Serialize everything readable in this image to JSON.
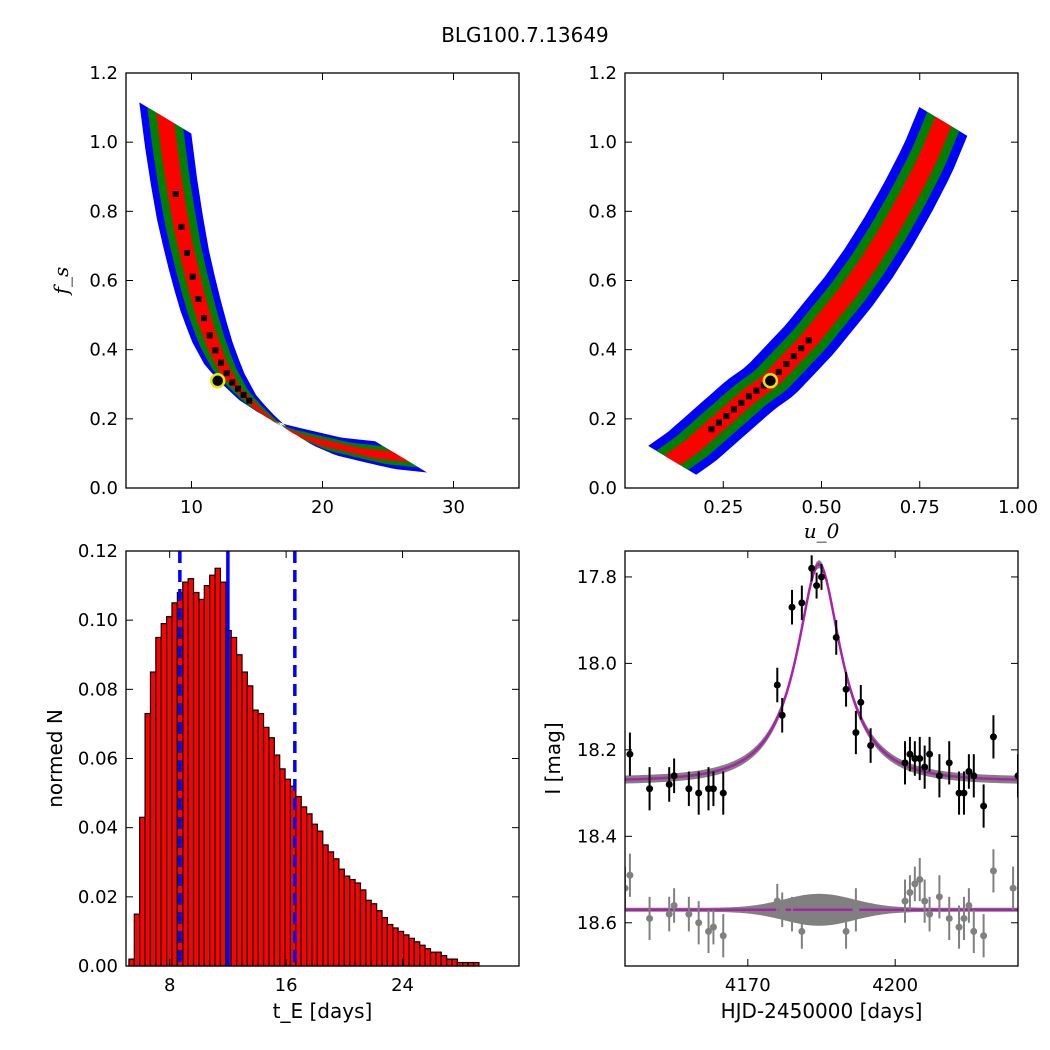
{
  "figure_title": "BLG100.7.13649",
  "chart_data": [
    {
      "type": "heatmap",
      "panel": "top-left",
      "xlabel": "",
      "ylabel": "f_s",
      "xlim": [
        5,
        35
      ],
      "ylim": [
        0,
        1.2
      ],
      "xticks": [
        "10",
        "20",
        "30"
      ],
      "yticks": [
        "0.0",
        "0.2",
        "0.4",
        "0.6",
        "0.8",
        "1.0",
        "1.2"
      ],
      "confidence_colors": {
        "inner": "#ff0000",
        "middle": "#008000",
        "outer": "#0000ff"
      },
      "ridge": {
        "x": [
          8.0,
          8.4,
          8.8,
          9.3,
          9.9,
          10.5,
          11.2,
          12.0,
          13.0,
          14.2,
          15.6,
          17.2,
          19.0,
          21.2,
          23.5,
          26.0
        ],
        "y": [
          1.07,
          0.95,
          0.85,
          0.74,
          0.64,
          0.55,
          0.46,
          0.38,
          0.31,
          0.26,
          0.21,
          0.17,
          0.14,
          0.12,
          0.1,
          0.09
        ]
      },
      "best_fit": {
        "x": 12.0,
        "y": 0.31
      }
    },
    {
      "type": "heatmap",
      "panel": "top-right",
      "xlabel": "u_0",
      "ylabel": "",
      "xlim": [
        0,
        1.0
      ],
      "ylim": [
        0,
        1.2
      ],
      "xticks": [
        "0.25",
        "0.50",
        "0.75",
        "1.00"
      ],
      "yticks": [
        "0.0",
        "0.2",
        "0.4",
        "0.6",
        "0.8",
        "1.0",
        "1.2"
      ],
      "confidence_colors": {
        "inner": "#ff0000",
        "middle": "#008000",
        "outer": "#0000ff"
      },
      "ridge": {
        "x": [
          0.12,
          0.17,
          0.22,
          0.27,
          0.32,
          0.37,
          0.42,
          0.47,
          0.52,
          0.57,
          0.62,
          0.67,
          0.72,
          0.77,
          0.81
        ],
        "y": [
          0.08,
          0.12,
          0.17,
          0.22,
          0.27,
          0.31,
          0.37,
          0.43,
          0.5,
          0.57,
          0.65,
          0.74,
          0.84,
          0.95,
          1.06
        ]
      },
      "best_fit": {
        "x": 0.37,
        "y": 0.31
      }
    },
    {
      "type": "bar",
      "panel": "bottom-left",
      "xlabel": "t_E [days]",
      "ylabel": "normed N",
      "xlim": [
        5,
        32
      ],
      "ylim": [
        0,
        0.12
      ],
      "xticks": [
        "8",
        "16",
        "24"
      ],
      "yticks": [
        "0.00",
        "0.02",
        "0.04",
        "0.06",
        "0.08",
        "0.10",
        "0.12"
      ],
      "bin_width": 0.37,
      "bin_start": 5.2,
      "values": [
        0.002,
        0.015,
        0.043,
        0.073,
        0.085,
        0.095,
        0.099,
        0.101,
        0.105,
        0.108,
        0.111,
        0.112,
        0.108,
        0.106,
        0.11,
        0.113,
        0.115,
        0.111,
        0.097,
        0.095,
        0.09,
        0.085,
        0.081,
        0.074,
        0.073,
        0.069,
        0.066,
        0.061,
        0.057,
        0.054,
        0.052,
        0.049,
        0.046,
        0.044,
        0.041,
        0.039,
        0.035,
        0.033,
        0.031,
        0.028,
        0.026,
        0.025,
        0.024,
        0.022,
        0.019,
        0.018,
        0.016,
        0.014,
        0.012,
        0.011,
        0.01,
        0.009,
        0.008,
        0.007,
        0.006,
        0.005,
        0.004,
        0.004,
        0.003,
        0.002,
        0.002,
        0.001,
        0.001,
        0.001,
        0.001
      ],
      "bar_color": "#ff0000",
      "median": 12.0,
      "dashed_bounds": [
        8.7,
        16.6
      ]
    },
    {
      "type": "scatter",
      "panel": "bottom-right",
      "xlabel": "HJD-2450000 [days]",
      "ylabel": "I [mag]",
      "xlim": [
        4145,
        4225
      ],
      "ylim": [
        18.7,
        17.74
      ],
      "y_inverted": true,
      "xticks": [
        "4170",
        "4200"
      ],
      "yticks": [
        "17.8",
        "18.0",
        "18.2",
        "18.4",
        "18.6"
      ],
      "model": {
        "peak_time": 4184.5,
        "baseline": 18.272,
        "peak_mag": 17.77,
        "tE": 12.0,
        "u0": 0.37,
        "color": "#aa22aa"
      },
      "data_points": {
        "x": [
          4146,
          4150,
          4154,
          4155,
          4158,
          4160,
          4162,
          4163,
          4165,
          4176,
          4177,
          4179,
          4181,
          4183,
          4184,
          4185,
          4188,
          4190,
          4192,
          4193,
          4195,
          4202,
          4203,
          4204,
          4205,
          4206,
          4207,
          4209,
          4211,
          4213,
          4214,
          4215,
          4216,
          4218,
          4220,
          4225
        ],
        "y": [
          18.21,
          18.29,
          18.28,
          18.26,
          18.29,
          18.3,
          18.29,
          18.29,
          18.3,
          18.05,
          18.12,
          17.87,
          17.86,
          17.78,
          17.82,
          17.8,
          17.94,
          18.06,
          18.16,
          18.09,
          18.19,
          18.23,
          18.21,
          18.22,
          18.22,
          18.24,
          18.21,
          18.26,
          18.23,
          18.3,
          18.3,
          18.25,
          18.26,
          18.33,
          18.17,
          18.26
        ],
        "err": [
          0.05,
          0.05,
          0.04,
          0.04,
          0.04,
          0.05,
          0.05,
          0.04,
          0.05,
          0.04,
          0.04,
          0.04,
          0.04,
          0.03,
          0.03,
          0.03,
          0.04,
          0.04,
          0.05,
          0.04,
          0.04,
          0.05,
          0.04,
          0.04,
          0.05,
          0.05,
          0.04,
          0.05,
          0.05,
          0.05,
          0.05,
          0.04,
          0.05,
          0.05,
          0.05,
          0.05
        ]
      },
      "residuals": {
        "baseline": 18.57,
        "x": [
          4145,
          4146,
          4150,
          4154,
          4155,
          4158,
          4160,
          4162,
          4163,
          4165,
          4176,
          4177,
          4179,
          4181,
          4190,
          4192,
          4202,
          4203,
          4204,
          4205,
          4206,
          4207,
          4209,
          4211,
          4213,
          4214,
          4215,
          4216,
          4218,
          4220,
          4224
        ],
        "y": [
          18.52,
          18.49,
          18.59,
          18.58,
          18.56,
          18.58,
          18.6,
          18.62,
          18.61,
          18.63,
          18.55,
          18.57,
          18.58,
          18.62,
          18.62,
          18.57,
          18.55,
          18.53,
          18.51,
          18.5,
          18.55,
          18.58,
          18.54,
          18.59,
          18.61,
          18.59,
          18.56,
          18.62,
          18.63,
          18.48,
          18.52
        ],
        "err": [
          0.05,
          0.05,
          0.05,
          0.04,
          0.04,
          0.04,
          0.05,
          0.05,
          0.04,
          0.05,
          0.04,
          0.04,
          0.04,
          0.04,
          0.04,
          0.05,
          0.05,
          0.04,
          0.04,
          0.05,
          0.05,
          0.04,
          0.05,
          0.05,
          0.05,
          0.05,
          0.04,
          0.05,
          0.05,
          0.05,
          0.05
        ],
        "color": "#808080"
      }
    }
  ]
}
